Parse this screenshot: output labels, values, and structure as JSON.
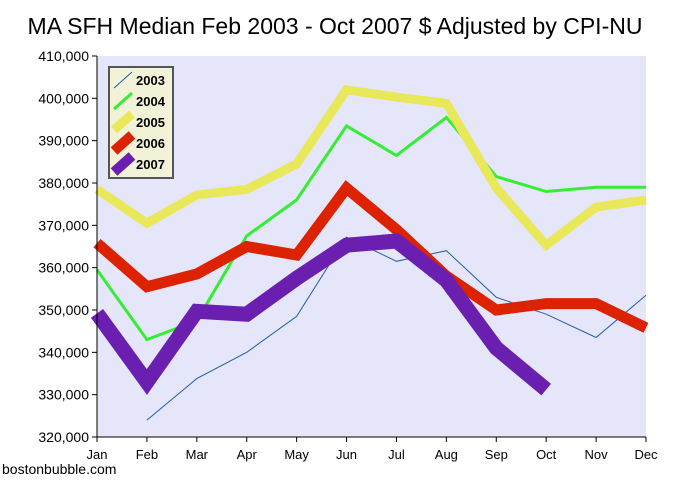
{
  "chart_data": {
    "type": "line",
    "title": "MA SFH Median Feb 2003 - Oct 2007 $ Adjusted by CPI-NU",
    "xlabel": "",
    "ylabel": "",
    "categories": [
      "Jan",
      "Feb",
      "Mar",
      "Apr",
      "May",
      "Jun",
      "Jul",
      "Aug",
      "Sep",
      "Oct",
      "Nov",
      "Dec"
    ],
    "ylim": [
      320000,
      410000
    ],
    "yticks": [
      320000,
      330000,
      340000,
      350000,
      360000,
      370000,
      380000,
      390000,
      400000,
      410000
    ],
    "ytick_labels": [
      "320,000",
      "330,000",
      "340,000",
      "350,000",
      "360,000",
      "370,000",
      "380,000",
      "390,000",
      "400,000",
      "410,000"
    ],
    "grid": false,
    "legend_position": "top-left",
    "plot_background": "#e6e6fa",
    "series": [
      {
        "name": "2003",
        "color": "#1f5fa8",
        "width": 1,
        "values": [
          null,
          324000,
          333800,
          340000,
          348500,
          367200,
          361500,
          364000,
          353000,
          349000,
          343500,
          353500
        ]
      },
      {
        "name": "2004",
        "color": "#33ee33",
        "width": 3,
        "values": [
          359500,
          343000,
          347500,
          367500,
          376000,
          393500,
          386500,
          395500,
          381500,
          378000,
          379000,
          379000
        ]
      },
      {
        "name": "2005",
        "color": "#e8e85a",
        "width": 9,
        "values": [
          378500,
          370500,
          377200,
          378500,
          384500,
          402000,
          400300,
          398800,
          378800,
          365300,
          374300,
          376000
        ]
      },
      {
        "name": "2006",
        "color": "#dd2200",
        "width": 11,
        "values": [
          365800,
          355500,
          358500,
          365000,
          363000,
          378800,
          369000,
          358000,
          350000,
          351500,
          351500,
          345800
        ]
      },
      {
        "name": "2007",
        "color": "#6a1fb0",
        "width": 15,
        "values": [
          349200,
          333000,
          349700,
          349000,
          357500,
          365300,
          366300,
          357000,
          341000,
          331200,
          null,
          null
        ]
      }
    ]
  },
  "footer": {
    "source": "bostonbubble.com"
  }
}
